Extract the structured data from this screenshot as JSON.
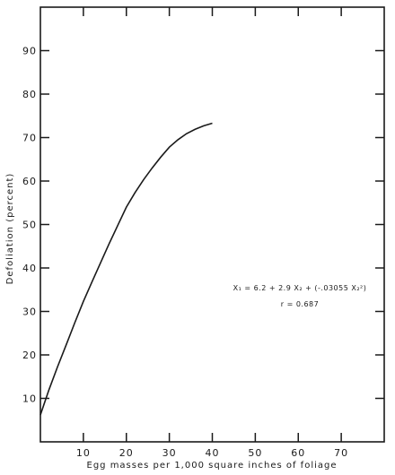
{
  "chart_data": {
    "type": "line",
    "title": "",
    "xlabel": "Egg masses per 1,000 square inches of foliage",
    "ylabel": "Defoliation (percent)",
    "xlim": [
      0,
      80
    ],
    "ylim": [
      0,
      100
    ],
    "xticks": [
      10,
      20,
      30,
      40,
      50,
      60,
      70
    ],
    "yticks": [
      10,
      20,
      30,
      40,
      50,
      60,
      70,
      80,
      90
    ],
    "grid": false,
    "series": [
      {
        "x": [
          0,
          2,
          4,
          6,
          8,
          10,
          12,
          14,
          16,
          18,
          20,
          22,
          24,
          26,
          28,
          30,
          32,
          34,
          36,
          38,
          40
        ],
        "y": [
          6.2,
          12.0,
          17.3,
          22.3,
          27.4,
          32.3,
          36.8,
          41.2,
          45.6,
          49.8,
          54.0,
          57.3,
          60.3,
          63.0,
          65.5,
          67.8,
          69.5,
          70.9,
          71.9,
          72.7,
          73.3
        ]
      }
    ],
    "annotations": [
      {
        "text": "X₁ = 6.2 + 2.9 X₂ + (-.03055 X₂²)"
      },
      {
        "text": "r = 0.687"
      }
    ]
  }
}
